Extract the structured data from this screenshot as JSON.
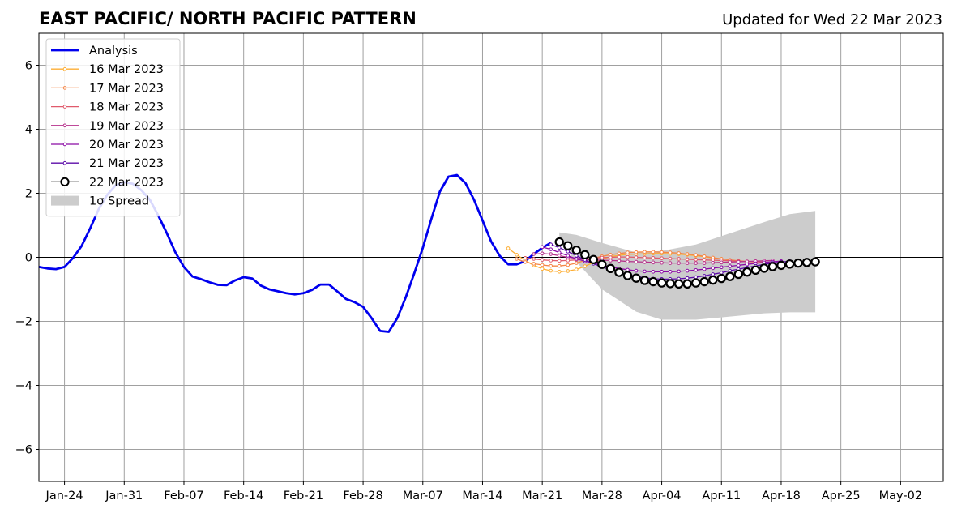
{
  "title": "EAST PACIFIC/ NORTH PACIFIC PATTERN",
  "subtitle": "Updated for Wed 22 Mar 2023",
  "chart_data": {
    "type": "line",
    "title": "EAST PACIFIC/ NORTH PACIFIC PATTERN",
    "subtitle": "Updated for Wed 22 Mar 2023",
    "xlabel": "",
    "ylabel": "",
    "x_type": "date",
    "xlim": [
      "2023-01-21",
      "2023-05-07"
    ],
    "ylim": [
      -7,
      7
    ],
    "grid": true,
    "legend_position": "upper-left",
    "x_ticks": [
      {
        "date": "2023-01-24",
        "label": "Jan-24"
      },
      {
        "date": "2023-01-31",
        "label": "Jan-31"
      },
      {
        "date": "2023-02-07",
        "label": "Feb-07"
      },
      {
        "date": "2023-02-14",
        "label": "Feb-14"
      },
      {
        "date": "2023-02-21",
        "label": "Feb-21"
      },
      {
        "date": "2023-02-28",
        "label": "Feb-28"
      },
      {
        "date": "2023-03-07",
        "label": "Mar-07"
      },
      {
        "date": "2023-03-14",
        "label": "Mar-14"
      },
      {
        "date": "2023-03-21",
        "label": "Mar-21"
      },
      {
        "date": "2023-03-28",
        "label": "Mar-28"
      },
      {
        "date": "2023-04-04",
        "label": "Apr-04"
      },
      {
        "date": "2023-04-11",
        "label": "Apr-11"
      },
      {
        "date": "2023-04-18",
        "label": "Apr-18"
      },
      {
        "date": "2023-04-25",
        "label": "Apr-25"
      },
      {
        "date": "2023-05-02",
        "label": "May-02"
      }
    ],
    "y_ticks": [
      {
        "value": 6,
        "label": "6"
      },
      {
        "value": 4,
        "label": "4"
      },
      {
        "value": 2,
        "label": "2"
      },
      {
        "value": 0,
        "label": "0"
      },
      {
        "value": -2,
        "label": "−2"
      },
      {
        "value": -4,
        "label": "−4"
      },
      {
        "value": -6,
        "label": "−6"
      }
    ],
    "spread": {
      "name": "1σ Spread",
      "color": "#cccccc",
      "dates": [
        "2023-03-23",
        "2023-03-25",
        "2023-03-28",
        "2023-04-01",
        "2023-04-04",
        "2023-04-08",
        "2023-04-12",
        "2023-04-16",
        "2023-04-19",
        "2023-04-22"
      ],
      "upper": [
        0.78,
        0.7,
        0.45,
        0.15,
        0.2,
        0.4,
        0.75,
        1.1,
        1.35,
        1.45
      ],
      "lower": [
        0.5,
        -0.15,
        -1.0,
        -1.7,
        -1.95,
        -1.95,
        -1.85,
        -1.75,
        -1.72,
        -1.72
      ]
    },
    "series": [
      {
        "name": "Analysis",
        "color": "#0000ee",
        "marker": "none",
        "dates": [
          "2023-01-21",
          "2023-01-22",
          "2023-01-23",
          "2023-01-24",
          "2023-01-25",
          "2023-01-26",
          "2023-01-27",
          "2023-01-28",
          "2023-01-29",
          "2023-01-30",
          "2023-01-31",
          "2023-02-01",
          "2023-02-02",
          "2023-02-03",
          "2023-02-04",
          "2023-02-05",
          "2023-02-06",
          "2023-02-07",
          "2023-02-08",
          "2023-02-09",
          "2023-02-10",
          "2023-02-11",
          "2023-02-12",
          "2023-02-13",
          "2023-02-14",
          "2023-02-15",
          "2023-02-16",
          "2023-02-17",
          "2023-02-18",
          "2023-02-19",
          "2023-02-20",
          "2023-02-21",
          "2023-02-22",
          "2023-02-23",
          "2023-02-24",
          "2023-02-25",
          "2023-02-26",
          "2023-02-27",
          "2023-02-28",
          "2023-03-01",
          "2023-03-02",
          "2023-03-03",
          "2023-03-04",
          "2023-03-05",
          "2023-03-06",
          "2023-03-07",
          "2023-03-08",
          "2023-03-09",
          "2023-03-10",
          "2023-03-11",
          "2023-03-12",
          "2023-03-13",
          "2023-03-14",
          "2023-03-15",
          "2023-03-16",
          "2023-03-17",
          "2023-03-18",
          "2023-03-19",
          "2023-03-20",
          "2023-03-21",
          "2023-03-22"
        ],
        "values": [
          -0.3,
          -0.35,
          -0.37,
          -0.3,
          -0.02,
          0.35,
          0.9,
          1.5,
          1.95,
          2.25,
          2.35,
          2.3,
          2.1,
          1.8,
          1.3,
          0.75,
          0.15,
          -0.3,
          -0.6,
          -0.68,
          -0.78,
          -0.86,
          -0.87,
          -0.72,
          -0.62,
          -0.66,
          -0.88,
          -1.0,
          -1.06,
          -1.12,
          -1.16,
          -1.12,
          -1.02,
          -0.85,
          -0.85,
          -1.07,
          -1.3,
          -1.4,
          -1.55,
          -1.9,
          -2.3,
          -2.33,
          -1.9,
          -1.25,
          -0.5,
          0.3,
          1.2,
          2.05,
          2.52,
          2.57,
          2.32,
          1.8,
          1.15,
          0.5,
          0.05,
          -0.22,
          -0.22,
          -0.12,
          0.1,
          0.3,
          0.45
        ]
      },
      {
        "name": "16 Mar 2023",
        "color": "#fdae34",
        "marker": "dot",
        "dates": [
          "2023-03-17",
          "2023-03-18",
          "2023-03-19",
          "2023-03-20",
          "2023-03-21",
          "2023-03-22",
          "2023-03-23",
          "2023-03-24",
          "2023-03-25",
          "2023-03-26",
          "2023-03-27",
          "2023-03-28",
          "2023-03-29",
          "2023-03-30",
          "2023-03-31",
          "2023-04-01",
          "2023-04-02",
          "2023-04-03",
          "2023-04-04",
          "2023-04-05",
          "2023-04-06",
          "2023-04-07",
          "2023-04-08",
          "2023-04-09",
          "2023-04-10",
          "2023-04-11"
        ],
        "values": [
          0.28,
          0.08,
          -0.1,
          -0.25,
          -0.36,
          -0.42,
          -0.45,
          -0.43,
          -0.38,
          -0.28,
          -0.16,
          -0.06,
          0.02,
          0.06,
          0.09,
          0.1,
          0.11,
          0.12,
          0.12,
          0.11,
          0.1,
          0.08,
          0.05,
          0.02,
          -0.02,
          -0.05
        ]
      },
      {
        "name": "17 Mar 2023",
        "color": "#f58646",
        "marker": "dot",
        "dates": [
          "2023-03-18",
          "2023-03-19",
          "2023-03-20",
          "2023-03-21",
          "2023-03-22",
          "2023-03-23",
          "2023-03-24",
          "2023-03-25",
          "2023-03-26",
          "2023-03-27",
          "2023-03-28",
          "2023-03-29",
          "2023-03-30",
          "2023-03-31",
          "2023-04-01",
          "2023-04-02",
          "2023-04-03",
          "2023-04-04",
          "2023-04-05",
          "2023-04-06",
          "2023-04-07",
          "2023-04-08",
          "2023-04-09",
          "2023-04-10",
          "2023-04-11",
          "2023-04-12",
          "2023-04-13",
          "2023-04-14",
          "2023-04-15"
        ],
        "values": [
          -0.05,
          -0.15,
          -0.2,
          -0.24,
          -0.27,
          -0.27,
          -0.24,
          -0.18,
          -0.1,
          -0.03,
          0.03,
          0.08,
          0.12,
          0.15,
          0.16,
          0.17,
          0.17,
          0.16,
          0.15,
          0.13,
          0.1,
          0.07,
          0.03,
          -0.01,
          -0.05,
          -0.08,
          -0.11,
          -0.13,
          -0.15
        ]
      },
      {
        "name": "18 Mar 2023",
        "color": "#e05a6c",
        "marker": "dot",
        "dates": [
          "2023-03-19",
          "2023-03-20",
          "2023-03-21",
          "2023-03-22",
          "2023-03-23",
          "2023-03-24",
          "2023-03-25",
          "2023-03-26",
          "2023-03-27",
          "2023-03-28",
          "2023-03-29",
          "2023-03-30",
          "2023-03-31",
          "2023-04-01",
          "2023-04-02",
          "2023-04-03",
          "2023-04-04",
          "2023-04-05",
          "2023-04-06",
          "2023-04-07",
          "2023-04-08",
          "2023-04-09",
          "2023-04-10",
          "2023-04-11",
          "2023-04-12",
          "2023-04-13",
          "2023-04-14",
          "2023-04-15",
          "2023-04-16"
        ],
        "values": [
          -0.02,
          -0.05,
          -0.08,
          -0.1,
          -0.11,
          -0.1,
          -0.08,
          -0.05,
          -0.03,
          -0.01,
          0.0,
          0.01,
          0.01,
          0.0,
          -0.01,
          -0.02,
          -0.03,
          -0.04,
          -0.05,
          -0.06,
          -0.07,
          -0.08,
          -0.09,
          -0.1,
          -0.11,
          -0.12,
          -0.13,
          -0.14,
          -0.15
        ]
      },
      {
        "name": "19 Mar 2023",
        "color": "#b6308b",
        "marker": "dot",
        "dates": [
          "2023-03-20",
          "2023-03-21",
          "2023-03-22",
          "2023-03-23",
          "2023-03-24",
          "2023-03-25",
          "2023-03-26",
          "2023-03-27",
          "2023-03-28",
          "2023-03-29",
          "2023-03-30",
          "2023-03-31",
          "2023-04-01",
          "2023-04-02",
          "2023-04-03",
          "2023-04-04",
          "2023-04-05",
          "2023-04-06",
          "2023-04-07",
          "2023-04-08",
          "2023-04-09",
          "2023-04-10",
          "2023-04-11",
          "2023-04-12",
          "2023-04-13",
          "2023-04-14",
          "2023-04-15",
          "2023-04-16",
          "2023-04-17"
        ],
        "values": [
          0.1,
          0.12,
          0.1,
          0.05,
          0.0,
          -0.03,
          -0.06,
          -0.08,
          -0.09,
          -0.1,
          -0.11,
          -0.13,
          -0.14,
          -0.15,
          -0.16,
          -0.17,
          -0.18,
          -0.18,
          -0.18,
          -0.18,
          -0.18,
          -0.17,
          -0.16,
          -0.15,
          -0.14,
          -0.13,
          -0.12,
          -0.11,
          -0.1
        ]
      },
      {
        "name": "20 Mar 2023",
        "color": "#8b0aa5",
        "marker": "dot",
        "dates": [
          "2023-03-21",
          "2023-03-22",
          "2023-03-23",
          "2023-03-24",
          "2023-03-25",
          "2023-03-26",
          "2023-03-27",
          "2023-03-28",
          "2023-03-29",
          "2023-03-30",
          "2023-03-31",
          "2023-04-01",
          "2023-04-02",
          "2023-04-03",
          "2023-04-04",
          "2023-04-05",
          "2023-04-06",
          "2023-04-07",
          "2023-04-08",
          "2023-04-09",
          "2023-04-10",
          "2023-04-11",
          "2023-04-12",
          "2023-04-13",
          "2023-04-14",
          "2023-04-15",
          "2023-04-16",
          "2023-04-17",
          "2023-04-18"
        ],
        "values": [
          0.32,
          0.25,
          0.15,
          0.05,
          -0.05,
          -0.12,
          -0.18,
          -0.24,
          -0.3,
          -0.35,
          -0.39,
          -0.42,
          -0.44,
          -0.45,
          -0.45,
          -0.45,
          -0.44,
          -0.42,
          -0.4,
          -0.37,
          -0.34,
          -0.31,
          -0.28,
          -0.25,
          -0.22,
          -0.19,
          -0.16,
          -0.14,
          -0.12
        ]
      },
      {
        "name": "21 Mar 2023",
        "color": "#5c0ca8",
        "marker": "dot",
        "dates": [
          "2023-03-22",
          "2023-03-23",
          "2023-03-24",
          "2023-03-25",
          "2023-03-26",
          "2023-03-27",
          "2023-03-28",
          "2023-03-29",
          "2023-03-30",
          "2023-03-31",
          "2023-04-01",
          "2023-04-02",
          "2023-04-03",
          "2023-04-04",
          "2023-04-05",
          "2023-04-06",
          "2023-04-07",
          "2023-04-08",
          "2023-04-09",
          "2023-04-10",
          "2023-04-11",
          "2023-04-12",
          "2023-04-13",
          "2023-04-14",
          "2023-04-15",
          "2023-04-16",
          "2023-04-17",
          "2023-04-18",
          "2023-04-19"
        ],
        "values": [
          0.4,
          0.3,
          0.18,
          0.05,
          -0.08,
          -0.2,
          -0.3,
          -0.39,
          -0.47,
          -0.54,
          -0.6,
          -0.64,
          -0.67,
          -0.68,
          -0.68,
          -0.67,
          -0.65,
          -0.62,
          -0.58,
          -0.53,
          -0.48,
          -0.42,
          -0.37,
          -0.32,
          -0.27,
          -0.22,
          -0.18,
          -0.15,
          -0.12
        ]
      },
      {
        "name": "22 Mar 2023",
        "color": "#000000",
        "marker": "circle",
        "dates": [
          "2023-03-23",
          "2023-03-24",
          "2023-03-25",
          "2023-03-26",
          "2023-03-27",
          "2023-03-28",
          "2023-03-29",
          "2023-03-30",
          "2023-03-31",
          "2023-04-01",
          "2023-04-02",
          "2023-04-03",
          "2023-04-04",
          "2023-04-05",
          "2023-04-06",
          "2023-04-07",
          "2023-04-08",
          "2023-04-09",
          "2023-04-10",
          "2023-04-11",
          "2023-04-12",
          "2023-04-13",
          "2023-04-14",
          "2023-04-15",
          "2023-04-16",
          "2023-04-17",
          "2023-04-18",
          "2023-04-19",
          "2023-04-20",
          "2023-04-21",
          "2023-04-22"
        ],
        "values": [
          0.48,
          0.36,
          0.22,
          0.08,
          -0.07,
          -0.22,
          -0.35,
          -0.47,
          -0.57,
          -0.65,
          -0.72,
          -0.76,
          -0.8,
          -0.82,
          -0.83,
          -0.83,
          -0.8,
          -0.76,
          -0.71,
          -0.66,
          -0.6,
          -0.53,
          -0.46,
          -0.4,
          -0.34,
          -0.29,
          -0.25,
          -0.21,
          -0.18,
          -0.16,
          -0.14
        ]
      }
    ]
  }
}
